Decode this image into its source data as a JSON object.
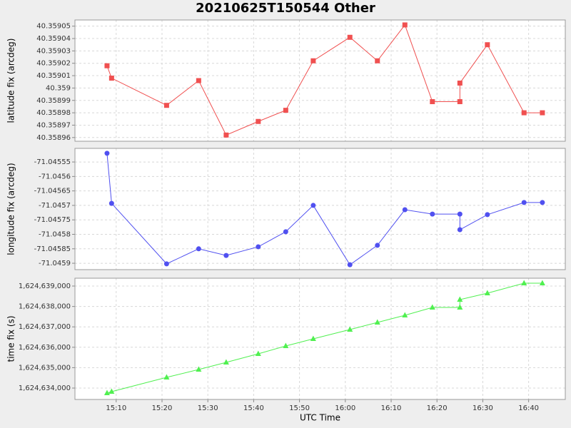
{
  "title": "20210625T150544 Other",
  "chart_data": [
    {
      "type": "line",
      "ylabel": "latitude fix (arcdeg)",
      "marker": "square",
      "grid": true,
      "x": [
        "15:08",
        "15:09",
        "15:21",
        "15:28",
        "15:34",
        "15:41",
        "15:47",
        "15:53",
        "16:01",
        "16:07",
        "16:13",
        "16:19",
        "16:25",
        "16:25",
        "16:31",
        "16:39",
        "16:43"
      ],
      "xlim": [
        "15:01",
        "16:48"
      ],
      "ylim": [
        40.358957,
        40.359055
      ],
      "yticks": [
        40.35896,
        40.35897,
        40.35898,
        40.35899,
        40.359,
        40.35901,
        40.35902,
        40.35903,
        40.35904,
        40.35905
      ],
      "series": [
        {
          "color": "#f05050",
          "values": [
            40.359018,
            40.359008,
            40.358986,
            40.359006,
            40.358962,
            40.358973,
            40.358982,
            40.359022,
            40.359041,
            40.359022,
            40.359051,
            40.358989,
            40.358989,
            40.359004,
            40.359035,
            40.35898,
            40.35898
          ]
        }
      ]
    },
    {
      "type": "line",
      "ylabel": "longitude fix (arcdeg)",
      "marker": "circle",
      "grid": true,
      "x": [
        "15:08",
        "15:09",
        "15:21",
        "15:28",
        "15:34",
        "15:41",
        "15:47",
        "15:53",
        "16:01",
        "16:07",
        "16:13",
        "16:19",
        "16:25",
        "16:25",
        "16:31",
        "16:39",
        "16:43"
      ],
      "xlim": [
        "15:01",
        "16:48"
      ],
      "ylim": [
        -71.045922,
        -71.045503
      ],
      "yticks": [
        -71.0459,
        -71.04585,
        -71.0458,
        -71.04575,
        -71.0457,
        -71.04565,
        -71.0456,
        -71.04555
      ],
      "series": [
        {
          "color": "#5050f0",
          "values": [
            -71.04552,
            -71.045693,
            -71.045902,
            -71.04585,
            -71.045873,
            -71.045843,
            -71.045791,
            -71.0457,
            -71.045905,
            -71.045838,
            -71.045715,
            -71.04573,
            -71.04573,
            -71.045784,
            -71.045732,
            -71.04569,
            -71.04569
          ]
        }
      ]
    },
    {
      "type": "line",
      "ylabel": "time fix (s)",
      "xlabel": "UTC Time",
      "marker": "triangle",
      "grid": true,
      "x": [
        "15:08",
        "15:09",
        "15:21",
        "15:28",
        "15:34",
        "15:41",
        "15:47",
        "15:53",
        "16:01",
        "16:07",
        "16:13",
        "16:19",
        "16:25",
        "16:25",
        "16:31",
        "16:39",
        "16:43"
      ],
      "xlim": [
        "15:01",
        "16:48"
      ],
      "xticks": [
        "15:10",
        "15:20",
        "15:30",
        "15:40",
        "15:50",
        "16:00",
        "16:10",
        "16:20",
        "16:30",
        "16:40"
      ],
      "ylim": [
        1624633441,
        1624639385
      ],
      "yticks": [
        {
          "value": 1624634000,
          "label": "1,624,634,000"
        },
        {
          "value": 1624635000,
          "label": "1,624,635,000"
        },
        {
          "value": 1624636000,
          "label": "1,624,636,000"
        },
        {
          "value": 1624637000,
          "label": "1,624,637,000"
        },
        {
          "value": 1624638000,
          "label": "1,624,638,000"
        },
        {
          "value": 1624639000,
          "label": "1,624,639,000"
        }
      ],
      "series": [
        {
          "color": "#50f050",
          "values": [
            1624633755,
            1624633825,
            1624634524,
            1624634909,
            1624635259,
            1624635678,
            1624636063,
            1624636413,
            1624636867,
            1624637217,
            1624637566,
            1624637951,
            1624637951,
            1624638336,
            1624638650,
            1624639140,
            1624639140
          ]
        }
      ]
    }
  ]
}
